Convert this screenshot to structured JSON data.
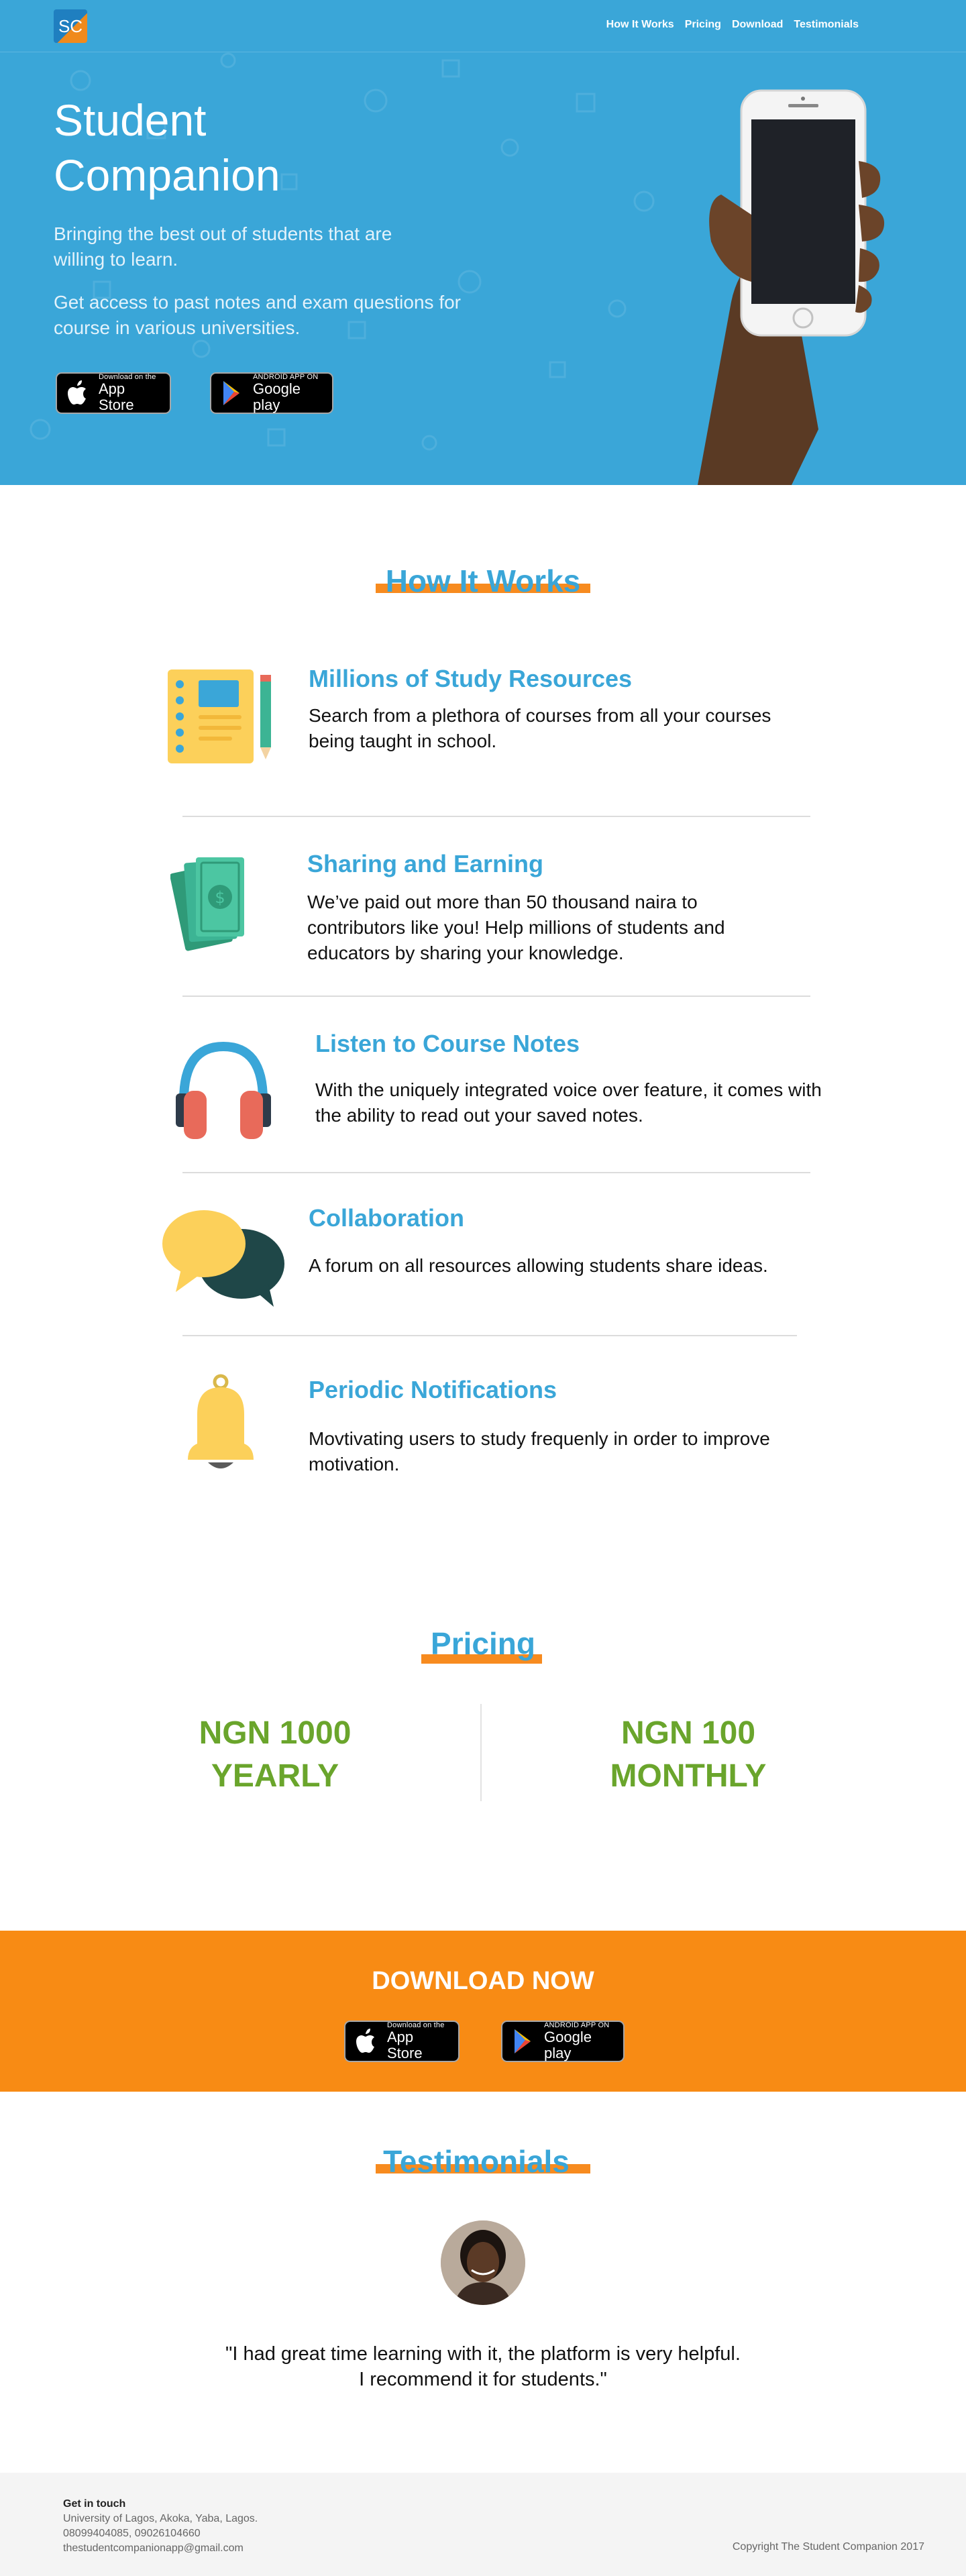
{
  "brand": {
    "logo_text": "SC",
    "accent_blue": "#3aa6d8",
    "accent_orange": "#f78b1f",
    "price_green": "#6aa52c"
  },
  "nav": {
    "items": [
      "How It Works",
      "Pricing",
      "Download",
      "Testimonials"
    ]
  },
  "hero": {
    "title_line1": "Student",
    "title_line2": "Companion",
    "subtitle": "Bringing the best out of students that are willing to learn.",
    "description": "Get access to past notes and exam questions for course in various universities."
  },
  "badges": {
    "appstore_small": "Download on the",
    "appstore_big": "App Store",
    "gplay_small": "ANDROID APP ON",
    "gplay_big": "Google play"
  },
  "how_it_works": {
    "heading": "How It Works",
    "features": [
      {
        "title": "Millions of Study Resources",
        "description": "Search from a plethora of courses from all your courses being taught in school.",
        "icon": "notebook-icon"
      },
      {
        "title": "Sharing and Earning",
        "description": "We’ve paid out more than 50 thousand naira to contributors like you! Help millions of students and educators by sharing your knowledge.",
        "icon": "money-icon"
      },
      {
        "title": "Listen to Course Notes",
        "description": "With the uniquely integrated voice over feature, it comes with the ability to read out your saved notes.",
        "icon": "headphones-icon"
      },
      {
        "title": "Collaboration",
        "description": "A forum on all resources allowing students share ideas.",
        "icon": "chat-bubbles-icon"
      },
      {
        "title": "Periodic Notifications",
        "description": "Movtivating users to study frequenly in order to improve motivation.",
        "icon": "bell-icon"
      }
    ]
  },
  "pricing": {
    "heading": "Pricing",
    "plans": [
      {
        "amount": "NGN 1000",
        "period": "YEARLY"
      },
      {
        "amount": "NGN 100",
        "period": "MONTHLY"
      }
    ]
  },
  "download": {
    "heading": "DOWNLOAD NOW"
  },
  "testimonials": {
    "heading": "Testimonials",
    "quote_line1": "\"I had great time learning with it, the platform is very helpful.",
    "quote_line2": "I recommend it for students.\""
  },
  "footer": {
    "title": "Get in touch",
    "address": "University of Lagos, Akoka, Yaba, Lagos.",
    "phones": "08099404085, 09026104660",
    "email": "thestudentcompanionapp@gmail.com",
    "copyright": "Copyright The Student Companion 2017"
  }
}
